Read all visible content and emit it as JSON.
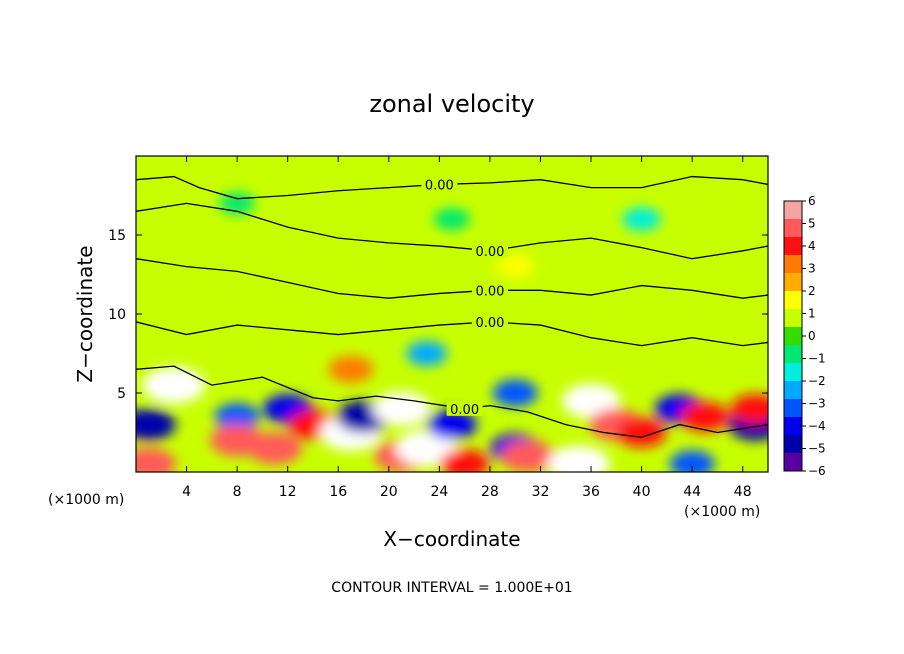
{
  "chart_data": {
    "type": "heatmap",
    "title": "zonal velocity",
    "xlabel": "X−coordinate",
    "ylabel": "Z−coordinate",
    "x_units": "(×1000 m)",
    "x_units_right": "(×1000 m)",
    "xlim": [
      0,
      50
    ],
    "ylim": [
      0,
      20
    ],
    "x_ticks": [
      4,
      8,
      12,
      16,
      20,
      24,
      28,
      32,
      36,
      40,
      44,
      48
    ],
    "y_ticks": [
      5,
      10,
      15
    ],
    "colorbar": {
      "ticks": [
        "6",
        "5",
        "4",
        "3",
        "2",
        "1",
        "0",
        "−1",
        "−2",
        "−3",
        "−4",
        "−5",
        "−6"
      ],
      "range": [
        -6,
        6
      ],
      "colors": [
        "#f7a3a3",
        "#ff5a5a",
        "#ff1010",
        "#ff7a00",
        "#ffae00",
        "#ffff00",
        "#c8ff00",
        "#33dd00",
        "#00e870",
        "#00eedd",
        "#00aaff",
        "#0055ff",
        "#0000ee",
        "#0000aa",
        "#5a00a0"
      ]
    },
    "contour_label": "0.00",
    "footer": "CONTOUR INTERVAL = 1.000E+01",
    "background_value": 0.5,
    "anomalies": [
      {
        "x": 3,
        "z": 5.5,
        "value": 7
      },
      {
        "x": 1,
        "z": 3,
        "value": -5
      },
      {
        "x": 1,
        "z": 0.5,
        "value": 5
      },
      {
        "x": 8,
        "z": 3.5,
        "value": -3
      },
      {
        "x": 8,
        "z": 2,
        "value": 5
      },
      {
        "x": 12,
        "z": 4,
        "value": -4
      },
      {
        "x": 11,
        "z": 1.5,
        "value": 5
      },
      {
        "x": 14,
        "z": 3,
        "value": 4
      },
      {
        "x": 17,
        "z": 2.5,
        "value": 7
      },
      {
        "x": 18,
        "z": 3.5,
        "value": -5
      },
      {
        "x": 17,
        "z": 6.5,
        "value": 3
      },
      {
        "x": 21,
        "z": 4,
        "value": 6
      },
      {
        "x": 21,
        "z": 1,
        "value": 5
      },
      {
        "x": 23,
        "z": 1.5,
        "value": 7
      },
      {
        "x": 25,
        "z": 3,
        "value": -4
      },
      {
        "x": 26,
        "z": 0.5,
        "value": 4
      },
      {
        "x": 30,
        "z": 5,
        "value": -3
      },
      {
        "x": 30,
        "z": 1.5,
        "value": -4
      },
      {
        "x": 31,
        "z": 1,
        "value": 5
      },
      {
        "x": 35,
        "z": 0.5,
        "value": 7
      },
      {
        "x": 36,
        "z": 4.5,
        "value": 6
      },
      {
        "x": 38,
        "z": 3,
        "value": 5
      },
      {
        "x": 40,
        "z": 2.5,
        "value": 4
      },
      {
        "x": 43,
        "z": 4,
        "value": -4
      },
      {
        "x": 45,
        "z": 3.5,
        "value": 4
      },
      {
        "x": 44,
        "z": 0.5,
        "value": -3
      },
      {
        "x": 49,
        "z": 3,
        "value": -5
      },
      {
        "x": 49,
        "z": 4,
        "value": 4
      },
      {
        "x": 23,
        "z": 7.5,
        "value": -2
      },
      {
        "x": 8,
        "z": 17,
        "value": -1
      },
      {
        "x": 25,
        "z": 16,
        "value": -1
      },
      {
        "x": 40,
        "z": 16,
        "value": -1.5
      },
      {
        "x": 30,
        "z": 13,
        "value": 1.5
      }
    ],
    "contours": [
      {
        "label": "0.00",
        "points": [
          [
            0,
            18.5
          ],
          [
            3,
            18.7
          ],
          [
            5,
            18
          ],
          [
            8,
            17.3
          ],
          [
            12,
            17.5
          ],
          [
            16,
            17.8
          ],
          [
            20,
            18
          ],
          [
            24,
            18.2
          ],
          [
            28,
            18.3
          ],
          [
            32,
            18.5
          ],
          [
            36,
            18
          ],
          [
            40,
            18
          ],
          [
            44,
            18.7
          ],
          [
            48,
            18.5
          ],
          [
            50,
            18.2
          ]
        ]
      },
      {
        "label": "0.00",
        "points": [
          [
            0,
            16.5
          ],
          [
            4,
            17
          ],
          [
            8,
            16.5
          ],
          [
            12,
            15.5
          ],
          [
            16,
            14.8
          ],
          [
            20,
            14.5
          ],
          [
            24,
            14.3
          ],
          [
            28,
            14
          ],
          [
            32,
            14.5
          ],
          [
            36,
            14.8
          ],
          [
            40,
            14.2
          ],
          [
            44,
            13.5
          ],
          [
            48,
            14
          ],
          [
            50,
            14.3
          ]
        ]
      },
      {
        "label": "0.00",
        "points": [
          [
            0,
            13.5
          ],
          [
            4,
            13
          ],
          [
            8,
            12.7
          ],
          [
            12,
            12
          ],
          [
            16,
            11.3
          ],
          [
            20,
            11
          ],
          [
            24,
            11.3
          ],
          [
            28,
            11.5
          ],
          [
            32,
            11.5
          ],
          [
            36,
            11.2
          ],
          [
            40,
            11.8
          ],
          [
            44,
            11.5
          ],
          [
            48,
            11
          ],
          [
            50,
            11.2
          ]
        ]
      },
      {
        "label": "0.00",
        "points": [
          [
            0,
            9.5
          ],
          [
            4,
            8.7
          ],
          [
            8,
            9.3
          ],
          [
            12,
            9
          ],
          [
            16,
            8.7
          ],
          [
            20,
            9
          ],
          [
            24,
            9.3
          ],
          [
            28,
            9.5
          ],
          [
            32,
            9.3
          ],
          [
            36,
            8.5
          ],
          [
            40,
            8
          ],
          [
            44,
            8.5
          ],
          [
            48,
            8
          ],
          [
            50,
            8.2
          ]
        ]
      },
      {
        "label": "0.00",
        "points": [
          [
            0,
            6.5
          ],
          [
            3,
            6.7
          ],
          [
            6,
            5.5
          ],
          [
            10,
            6
          ],
          [
            14,
            4.7
          ],
          [
            16,
            4.5
          ],
          [
            19,
            4.8
          ],
          [
            22,
            4.5
          ],
          [
            26,
            4
          ],
          [
            28,
            4.2
          ],
          [
            31,
            3.8
          ],
          [
            34,
            3
          ],
          [
            37,
            2.5
          ],
          [
            40,
            2.2
          ],
          [
            43,
            3
          ],
          [
            46,
            2.5
          ],
          [
            50,
            3
          ]
        ]
      }
    ]
  }
}
